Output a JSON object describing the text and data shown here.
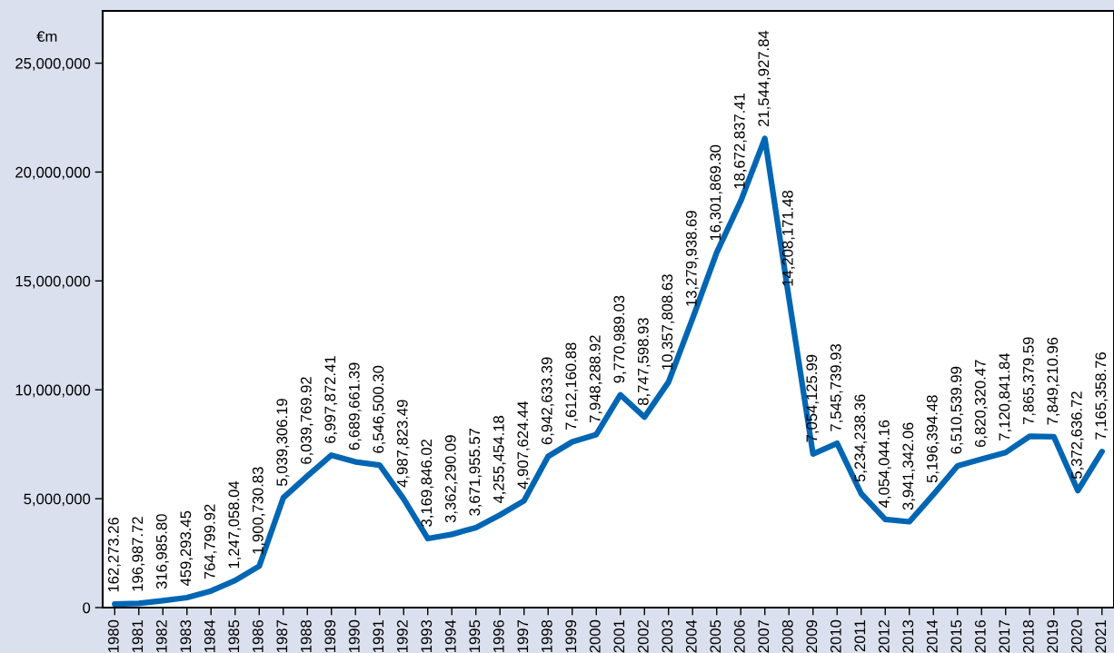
{
  "chart_data": {
    "type": "line",
    "ylabel": "€m",
    "categories": [
      "1980",
      "1981",
      "1982",
      "1983",
      "1984",
      "1985",
      "1986",
      "1987",
      "1988",
      "1989",
      "1990",
      "1991",
      "1992",
      "1993",
      "1994",
      "1995",
      "1996",
      "1997",
      "1998",
      "1999",
      "2000",
      "2001",
      "2002",
      "2003",
      "2004",
      "2005",
      "2006",
      "2007",
      "2008",
      "2009",
      "2010",
      "2011",
      "2012",
      "2013",
      "2014",
      "2015",
      "2016",
      "2017",
      "2018",
      "2019",
      "2020",
      "2021"
    ],
    "series": [
      {
        "color": "#0066b3",
        "values": [
          162273.26,
          196987.72,
          316985.8,
          459293.45,
          764799.92,
          1247058.04,
          1900730.83,
          5039306.19,
          6039769.92,
          6997872.41,
          6689661.39,
          6546500.3,
          4987823.49,
          3169846.02,
          3362290.09,
          3671955.57,
          4255454.18,
          4907624.44,
          6942633.39,
          7612160.88,
          7948288.92,
          9770989.03,
          8747598.93,
          10357808.63,
          13279938.69,
          16301869.3,
          18672837.41,
          21544927.84,
          14208171.48,
          7054125.99,
          7545739.93,
          5234238.36,
          4054044.16,
          3941342.06,
          5196394.48,
          6510539.99,
          6820320.47,
          7120841.84,
          7865379.59,
          7849210.96,
          5372636.72,
          7165358.76
        ],
        "value_labels": [
          "162,273.26",
          "196,987.72",
          "316,985.80",
          "459,293.45",
          "764,799.92",
          "1,247,058.04",
          "1,900,730.83",
          "5,039,306.19",
          "6,039,769.92",
          "6,997,872.41",
          "6,689,661.39",
          "6,546,500.30",
          "4,987,823.49",
          "3,169,846.02",
          "3,362,290.09",
          "3,671,955.57",
          "4,255,454.18",
          "4,907,624.44",
          "6,942,633.39",
          "7,612,160.88",
          "7,948,288.92",
          "9,770,989.03",
          "8,747,598.93",
          "10,357,808.63",
          "13,279,938.69",
          "16,301,869.30",
          "18,672,837.41",
          "21,544,927.84",
          "14,208,171.48",
          "7,054,125.99",
          "7,545,739.93",
          "5,234,238.36",
          "4,054,044.16",
          "3,941,342.06",
          "5,196,394.48",
          "6,510,539.99",
          "6,820,320.47",
          "7,120,841.84",
          "7,865,379.59",
          "7,849,210.96",
          "5,372,636.72",
          "7,165,358.76"
        ]
      }
    ],
    "ylim": [
      0,
      27400000
    ],
    "yticks": [
      {
        "value": 0,
        "label": "0"
      },
      {
        "value": 5000000,
        "label": "5,000,000"
      },
      {
        "value": 10000000,
        "label": "10,000,000"
      },
      {
        "value": 15000000,
        "label": "15,000,000"
      },
      {
        "value": 20000000,
        "label": "20,000,000"
      },
      {
        "value": 25000000,
        "label": "25,000,000"
      }
    ],
    "grid": false,
    "marker": "none",
    "line_style": "solid"
  }
}
